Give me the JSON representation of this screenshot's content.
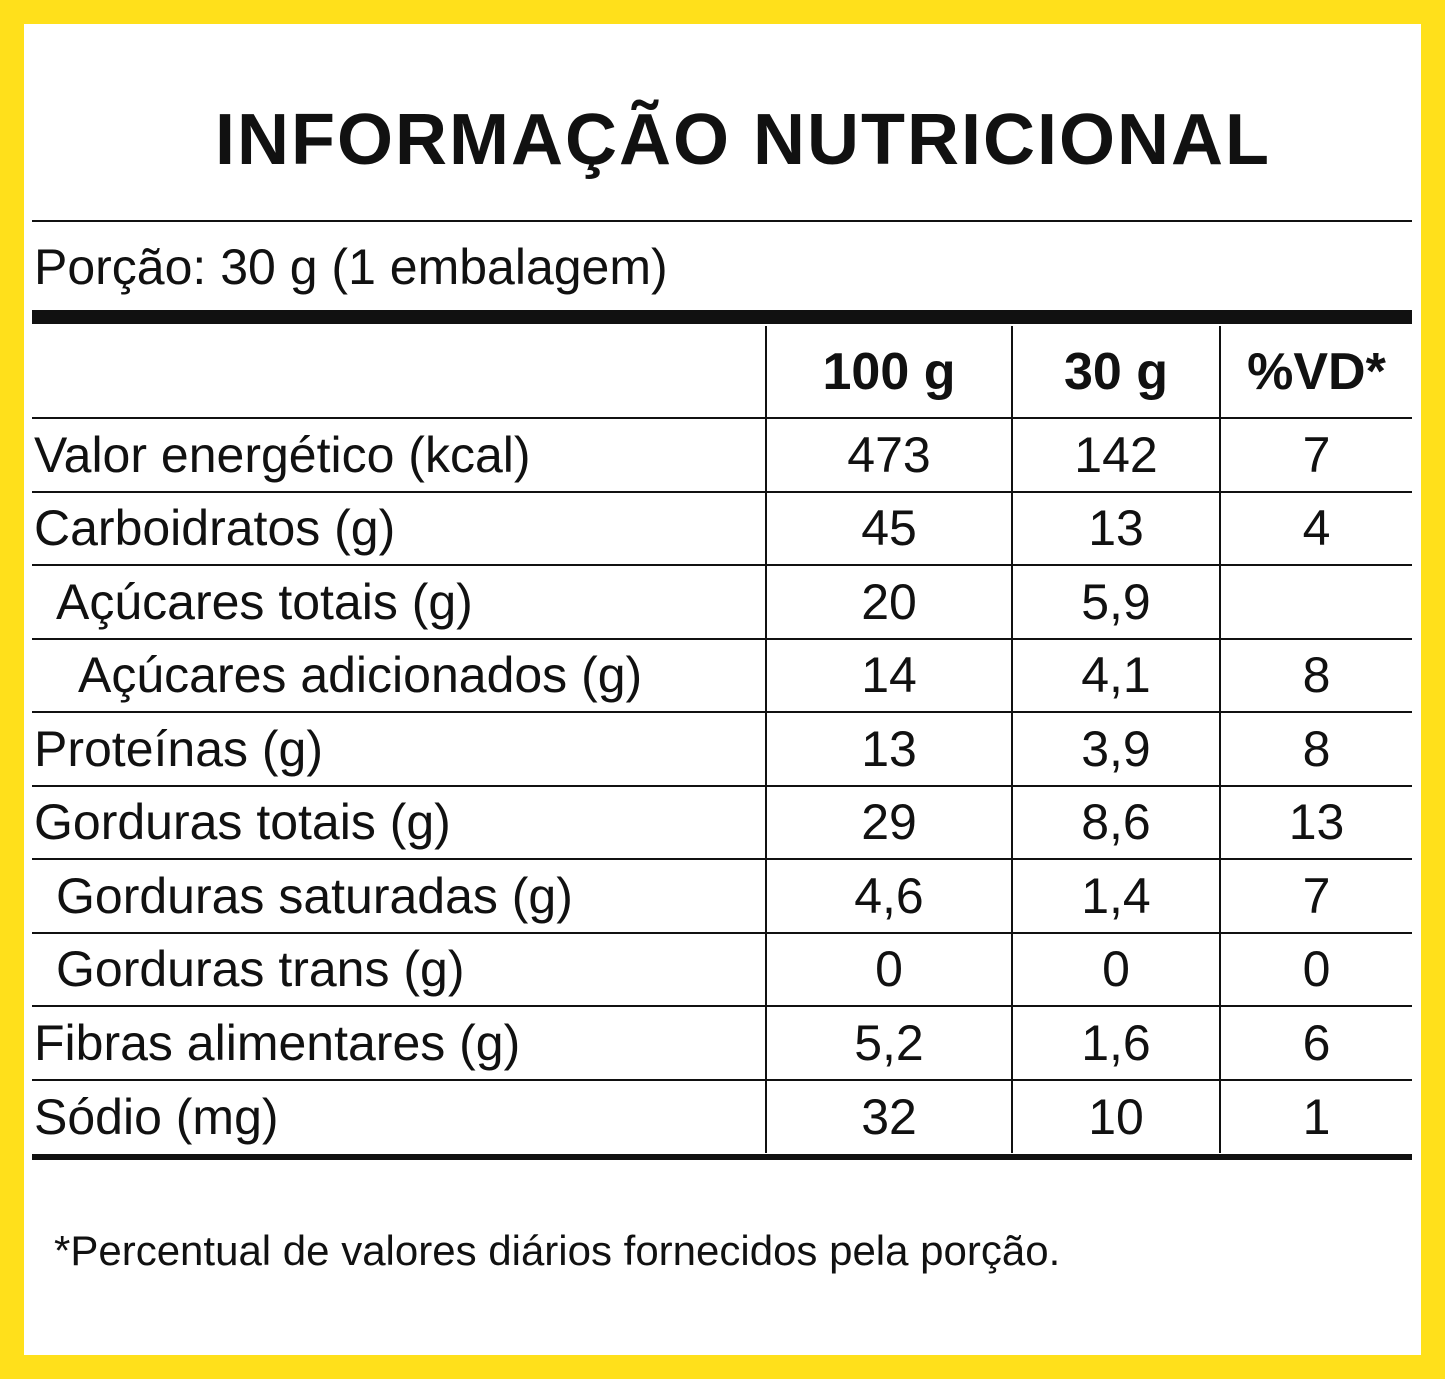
{
  "colors": {
    "frame": "#FFE01B",
    "panel": "#FFFFFF",
    "ink": "#111111"
  },
  "title": "INFORMAÇÃO NUTRICIONAL",
  "portion": "Porção: 30 g (1 embalagem)",
  "table": {
    "headers": {
      "name": "",
      "per100": "100 g",
      "perPortion": "30 g",
      "vd": "%VD*"
    },
    "rows": [
      {
        "name": "Valor energético (kcal)",
        "per100": "473",
        "perPortion": "142",
        "vd": "7",
        "indent": 0
      },
      {
        "name": "Carboidratos (g)",
        "per100": "45",
        "perPortion": "13",
        "vd": "4",
        "indent": 0
      },
      {
        "name": "Açúcares totais (g)",
        "per100": "20",
        "perPortion": "5,9",
        "vd": "",
        "indent": 1
      },
      {
        "name": "Açúcares adicionados (g)",
        "per100": "14",
        "perPortion": "4,1",
        "vd": "8",
        "indent": 2
      },
      {
        "name": "Proteínas (g)",
        "per100": "13",
        "perPortion": "3,9",
        "vd": "8",
        "indent": 0
      },
      {
        "name": "Gorduras totais (g)",
        "per100": "29",
        "perPortion": "8,6",
        "vd": "13",
        "indent": 0
      },
      {
        "name": "Gorduras saturadas (g)",
        "per100": "4,6",
        "perPortion": "1,4",
        "vd": "7",
        "indent": 1
      },
      {
        "name": "Gorduras trans (g)",
        "per100": "0",
        "perPortion": "0",
        "vd": "0",
        "indent": 1
      },
      {
        "name": "Fibras alimentares (g)",
        "per100": "5,2",
        "perPortion": "1,6",
        "vd": "6",
        "indent": 0
      },
      {
        "name": "Sódio (mg)",
        "per100": "32",
        "perPortion": "10",
        "vd": "1",
        "indent": 0
      }
    ]
  },
  "footnote": "*Percentual de valores diários fornecidos pela porção."
}
